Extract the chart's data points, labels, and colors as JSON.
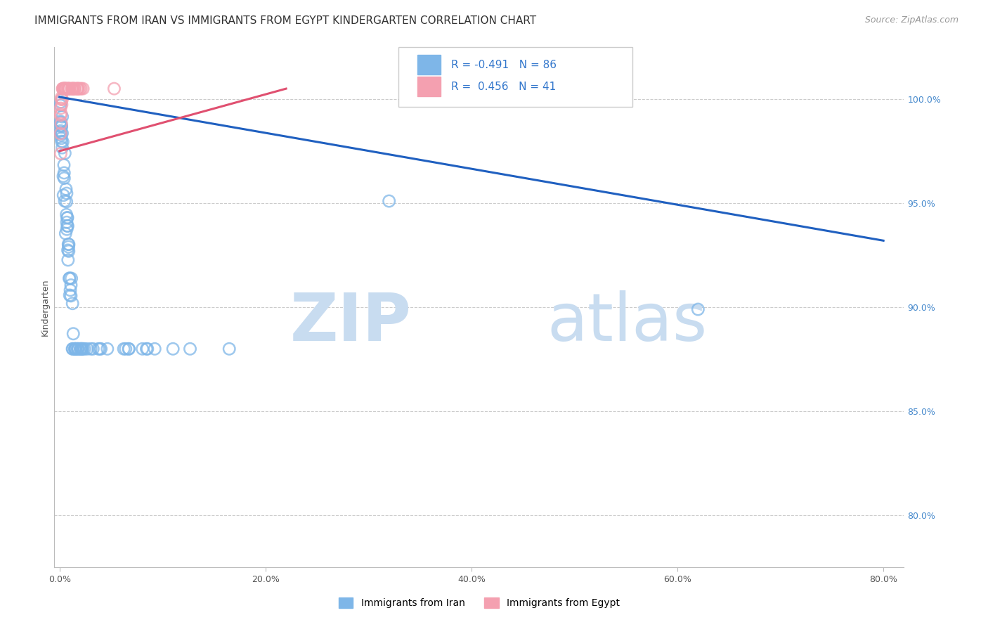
{
  "title": "IMMIGRANTS FROM IRAN VS IMMIGRANTS FROM EGYPT KINDERGARTEN CORRELATION CHART",
  "source": "Source: ZipAtlas.com",
  "ylabel": "Kindergarten",
  "x_tick_labels": [
    "0.0%",
    "20.0%",
    "40.0%",
    "60.0%",
    "80.0%"
  ],
  "x_tick_positions": [
    0.0,
    0.2,
    0.4,
    0.6,
    0.8
  ],
  "y_tick_labels": [
    "80.0%",
    "85.0%",
    "90.0%",
    "95.0%",
    "100.0%"
  ],
  "y_tick_positions": [
    0.8,
    0.85,
    0.9,
    0.95,
    1.0
  ],
  "xlim": [
    -0.005,
    0.82
  ],
  "ylim": [
    0.775,
    1.025
  ],
  "iran_R": -0.491,
  "iran_N": 86,
  "egypt_R": 0.456,
  "egypt_N": 41,
  "iran_color": "#7EB6E8",
  "egypt_color": "#F4A0B0",
  "iran_line_color": "#2060C0",
  "egypt_line_color": "#E05070",
  "legend_label_iran": "Immigrants from Iran",
  "legend_label_egypt": "Immigrants from Egypt",
  "title_fontsize": 11,
  "source_fontsize": 9,
  "axis_label_fontsize": 9,
  "tick_fontsize": 9,
  "background_color": "#ffffff",
  "grid_color": "#cccccc",
  "watermark_zip": "ZIP",
  "watermark_atlas": "atlas",
  "watermark_color_zip": "#C8DCF0",
  "watermark_color_atlas": "#C8DCF0",
  "iran_trendline_x": [
    0.0,
    0.8
  ],
  "iran_trendline_y": [
    1.001,
    0.932
  ],
  "egypt_trendline_x": [
    0.0,
    0.22
  ],
  "egypt_trendline_y": [
    0.975,
    1.005
  ]
}
